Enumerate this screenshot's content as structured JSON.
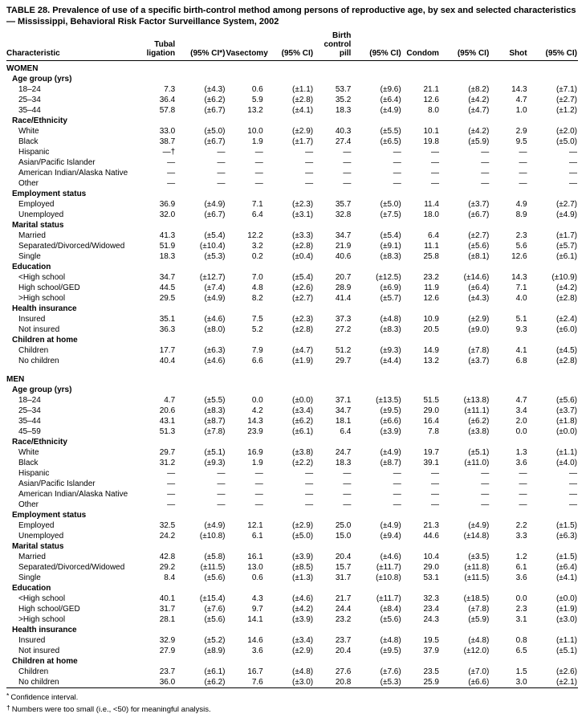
{
  "title": "TABLE 28. Prevalence of use of a specific birth-control method among persons of reproductive age, by sex and selected characteristics — Mississippi, Behavioral Risk Factor Surveillance System, 2002",
  "columns": [
    {
      "label": "Characteristic"
    },
    {
      "label": "Tubal\nligation"
    },
    {
      "label": "(95% CI*)"
    },
    {
      "label": "Vasectomy"
    },
    {
      "label": "(95% CI)"
    },
    {
      "label": "Birth\ncontrol\npill"
    },
    {
      "label": "(95% CI)"
    },
    {
      "label": "Condom"
    },
    {
      "label": "(95% CI)"
    },
    {
      "label": "Shot"
    },
    {
      "label": "(95% CI)"
    }
  ],
  "sections": [
    {
      "label": "WOMEN",
      "groups": [
        {
          "label": "Age group (yrs)",
          "rows": [
            {
              "label": "18–24",
              "values": [
                "7.3",
                "(±4.3)",
                "0.6",
                "(±1.1)",
                "53.7",
                "(±9.6)",
                "21.1",
                "(±8.2)",
                "14.3",
                "(±7.1)"
              ]
            },
            {
              "label": "25–34",
              "values": [
                "36.4",
                "(±6.2)",
                "5.9",
                "(±2.8)",
                "35.2",
                "(±6.4)",
                "12.6",
                "(±4.2)",
                "4.7",
                "(±2.7)"
              ]
            },
            {
              "label": "35–44",
              "values": [
                "57.8",
                "(±6.7)",
                "13.2",
                "(±4.1)",
                "18.3",
                "(±4.9)",
                "8.0",
                "(±4.7)",
                "1.0",
                "(±1.2)"
              ]
            }
          ]
        },
        {
          "label": "Race/Ethnicity",
          "rows": [
            {
              "label": "White",
              "values": [
                "33.0",
                "(±5.0)",
                "10.0",
                "(±2.9)",
                "40.3",
                "(±5.5)",
                "10.1",
                "(±4.2)",
                "2.9",
                "(±2.0)"
              ]
            },
            {
              "label": "Black",
              "values": [
                "38.7",
                "(±6.7)",
                "1.9",
                "(±1.7)",
                "27.4",
                "(±6.5)",
                "19.8",
                "(±5.9)",
                "9.5",
                "(±5.0)"
              ]
            },
            {
              "label": "Hispanic",
              "values": [
                "—†",
                "—",
                "—",
                "—",
                "—",
                "—",
                "—",
                "—",
                "—",
                "—"
              ]
            },
            {
              "label": "Asian/Pacific Islander",
              "values": [
                "—",
                "—",
                "—",
                "—",
                "—",
                "—",
                "—",
                "—",
                "—",
                "—"
              ]
            },
            {
              "label": "American Indian/Alaska Native",
              "values": [
                "—",
                "—",
                "—",
                "—",
                "—",
                "—",
                "—",
                "—",
                "—",
                "—"
              ]
            },
            {
              "label": "Other",
              "values": [
                "—",
                "—",
                "—",
                "—",
                "—",
                "—",
                "—",
                "—",
                "—",
                "—"
              ]
            }
          ]
        },
        {
          "label": "Employment status",
          "rows": [
            {
              "label": "Employed",
              "values": [
                "36.9",
                "(±4.9)",
                "7.1",
                "(±2.3)",
                "35.7",
                "(±5.0)",
                "11.4",
                "(±3.7)",
                "4.9",
                "(±2.7)"
              ]
            },
            {
              "label": "Unemployed",
              "values": [
                "32.0",
                "(±6.7)",
                "6.4",
                "(±3.1)",
                "32.8",
                "(±7.5)",
                "18.0",
                "(±6.7)",
                "8.9",
                "(±4.9)"
              ]
            }
          ]
        },
        {
          "label": "Marital status",
          "rows": [
            {
              "label": "Married",
              "values": [
                "41.3",
                "(±5.4)",
                "12.2",
                "(±3.3)",
                "34.7",
                "(±5.4)",
                "6.4",
                "(±2.7)",
                "2.3",
                "(±1.7)"
              ]
            },
            {
              "label": "Separated/Divorced/Widowed",
              "values": [
                "51.9",
                "(±10.4)",
                "3.2",
                "(±2.8)",
                "21.9",
                "(±9.1)",
                "11.1",
                "(±5.6)",
                "5.6",
                "(±5.7)"
              ]
            },
            {
              "label": "Single",
              "values": [
                "18.3",
                "(±5.3)",
                "0.2",
                "(±0.4)",
                "40.6",
                "(±8.3)",
                "25.8",
                "(±8.1)",
                "12.6",
                "(±6.1)"
              ]
            }
          ]
        },
        {
          "label": "Education",
          "rows": [
            {
              "label": "<High school",
              "values": [
                "34.7",
                "(±12.7)",
                "7.0",
                "(±5.4)",
                "20.7",
                "(±12.5)",
                "23.2",
                "(±14.6)",
                "14.3",
                "(±10.9)"
              ]
            },
            {
              "label": "High school/GED",
              "values": [
                "44.5",
                "(±7.4)",
                "4.8",
                "(±2.6)",
                "28.9",
                "(±6.9)",
                "11.9",
                "(±6.4)",
                "7.1",
                "(±4.2)"
              ]
            },
            {
              "label": ">High school",
              "values": [
                "29.5",
                "(±4.9)",
                "8.2",
                "(±2.7)",
                "41.4",
                "(±5.7)",
                "12.6",
                "(±4.3)",
                "4.0",
                "(±2.8)"
              ]
            }
          ]
        },
        {
          "label": "Health insurance",
          "rows": [
            {
              "label": "Insured",
              "values": [
                "35.1",
                "(±4.6)",
                "7.5",
                "(±2.3)",
                "37.3",
                "(±4.8)",
                "10.9",
                "(±2.9)",
                "5.1",
                "(±2.4)"
              ]
            },
            {
              "label": "Not insured",
              "values": [
                "36.3",
                "(±8.0)",
                "5.2",
                "(±2.8)",
                "27.2",
                "(±8.3)",
                "20.5",
                "(±9.0)",
                "9.3",
                "(±6.0)"
              ]
            }
          ]
        },
        {
          "label": "Children at home",
          "rows": [
            {
              "label": "Children",
              "values": [
                "17.7",
                "(±6.3)",
                "7.9",
                "(±4.7)",
                "51.2",
                "(±9.3)",
                "14.9",
                "(±7.8)",
                "4.1",
                "(±4.5)"
              ]
            },
            {
              "label": "No children",
              "values": [
                "40.4",
                "(±4.6)",
                "6.6",
                "(±1.9)",
                "29.7",
                "(±4.4)",
                "13.2",
                "(±3.7)",
                "6.8",
                "(±2.8)"
              ]
            }
          ]
        }
      ]
    },
    {
      "label": "MEN",
      "groups": [
        {
          "label": "Age group (yrs)",
          "rows": [
            {
              "label": "18–24",
              "values": [
                "4.7",
                "(±5.5)",
                "0.0",
                "(±0.0)",
                "37.1",
                "(±13.5)",
                "51.5",
                "(±13.8)",
                "4.7",
                "(±5.6)"
              ]
            },
            {
              "label": "25–34",
              "values": [
                "20.6",
                "(±8.3)",
                "4.2",
                "(±3.4)",
                "34.7",
                "(±9.5)",
                "29.0",
                "(±11.1)",
                "3.4",
                "(±3.7)"
              ]
            },
            {
              "label": "35–44",
              "values": [
                "43.1",
                "(±8.7)",
                "14.3",
                "(±6.2)",
                "18.1",
                "(±6.6)",
                "16.4",
                "(±6.2)",
                "2.0",
                "(±1.8)"
              ]
            },
            {
              "label": "45–59",
              "values": [
                "51.3",
                "(±7.8)",
                "23.9",
                "(±6.1)",
                "6.4",
                "(±3.9)",
                "7.8",
                "(±3.8)",
                "0.0",
                "(±0.0)"
              ]
            }
          ]
        },
        {
          "label": "Race/Ethnicity",
          "rows": [
            {
              "label": "White",
              "values": [
                "29.7",
                "(±5.1)",
                "16.9",
                "(±3.8)",
                "24.7",
                "(±4.9)",
                "19.7",
                "(±5.1)",
                "1.3",
                "(±1.1)"
              ]
            },
            {
              "label": "Black",
              "values": [
                "31.2",
                "(±9.3)",
                "1.9",
                "(±2.2)",
                "18.3",
                "(±8.7)",
                "39.1",
                "(±11.0)",
                "3.6",
                "(±4.0)"
              ]
            },
            {
              "label": "Hispanic",
              "values": [
                "—",
                "—",
                "—",
                "—",
                "—",
                "—",
                "—",
                "—",
                "—",
                "—"
              ]
            },
            {
              "label": "Asian/Pacific Islander",
              "values": [
                "—",
                "—",
                "—",
                "—",
                "—",
                "—",
                "—",
                "—",
                "—",
                "—"
              ]
            },
            {
              "label": "American Indian/Alaska Native",
              "values": [
                "—",
                "—",
                "—",
                "—",
                "—",
                "—",
                "—",
                "—",
                "—",
                "—"
              ]
            },
            {
              "label": "Other",
              "values": [
                "—",
                "—",
                "—",
                "—",
                "—",
                "—",
                "—",
                "—",
                "—",
                "—"
              ]
            }
          ]
        },
        {
          "label": "Employment status",
          "rows": [
            {
              "label": "Employed",
              "values": [
                "32.5",
                "(±4.9)",
                "12.1",
                "(±2.9)",
                "25.0",
                "(±4.9)",
                "21.3",
                "(±4.9)",
                "2.2",
                "(±1.5)"
              ]
            },
            {
              "label": "Unemployed",
              "values": [
                "24.2",
                "(±10.8)",
                "6.1",
                "(±5.0)",
                "15.0",
                "(±9.4)",
                "44.6",
                "(±14.8)",
                "3.3",
                "(±6.3)"
              ]
            }
          ]
        },
        {
          "label": "Marital status",
          "rows": [
            {
              "label": "Married",
              "values": [
                "42.8",
                "(±5.8)",
                "16.1",
                "(±3.9)",
                "20.4",
                "(±4.6)",
                "10.4",
                "(±3.5)",
                "1.2",
                "(±1.5)"
              ]
            },
            {
              "label": "Separated/Divorced/Widowed",
              "values": [
                "29.2",
                "(±11.5)",
                "13.0",
                "(±8.5)",
                "15.7",
                "(±11.7)",
                "29.0",
                "(±11.8)",
                "6.1",
                "(±6.4)"
              ]
            },
            {
              "label": "Single",
              "values": [
                "8.4",
                "(±5.6)",
                "0.6",
                "(±1.3)",
                "31.7",
                "(±10.8)",
                "53.1",
                "(±11.5)",
                "3.6",
                "(±4.1)"
              ]
            }
          ]
        },
        {
          "label": "Education",
          "rows": [
            {
              "label": "<High school",
              "values": [
                "40.1",
                "(±15.4)",
                "4.3",
                "(±4.6)",
                "21.7",
                "(±11.7)",
                "32.3",
                "(±18.5)",
                "0.0",
                "(±0.0)"
              ]
            },
            {
              "label": "High school/GED",
              "values": [
                "31.7",
                "(±7.6)",
                "9.7",
                "(±4.2)",
                "24.4",
                "(±8.4)",
                "23.4",
                "(±7.8)",
                "2.3",
                "(±1.9)"
              ]
            },
            {
              "label": ">High school",
              "values": [
                "28.1",
                "(±5.6)",
                "14.1",
                "(±3.9)",
                "23.2",
                "(±5.6)",
                "24.3",
                "(±5.9)",
                "3.1",
                "(±3.0)"
              ]
            }
          ]
        },
        {
          "label": "Health insurance",
          "rows": [
            {
              "label": "Insured",
              "values": [
                "32.9",
                "(±5.2)",
                "14.6",
                "(±3.4)",
                "23.7",
                "(±4.8)",
                "19.5",
                "(±4.8)",
                "0.8",
                "(±1.1)"
              ]
            },
            {
              "label": "Not insured",
              "values": [
                "27.9",
                "(±8.9)",
                "3.6",
                "(±2.9)",
                "20.4",
                "(±9.5)",
                "37.9",
                "(±12.0)",
                "6.5",
                "(±5.1)"
              ]
            }
          ]
        },
        {
          "label": "Children at home",
          "rows": [
            {
              "label": "Children",
              "values": [
                "23.7",
                "(±6.1)",
                "16.7",
                "(±4.8)",
                "27.6",
                "(±7.6)",
                "23.5",
                "(±7.0)",
                "1.5",
                "(±2.6)"
              ]
            },
            {
              "label": "No children",
              "values": [
                "36.0",
                "(±6.2)",
                "7.6",
                "(±3.0)",
                "20.8",
                "(±5.3)",
                "25.9",
                "(±6.6)",
                "3.0",
                "(±2.1)"
              ]
            }
          ]
        }
      ]
    }
  ],
  "footnotes": [
    {
      "marker": "*",
      "text": "Confidence interval."
    },
    {
      "marker": "†",
      "text": "Numbers were too small (i.e., <50) for meaningful analysis."
    }
  ]
}
